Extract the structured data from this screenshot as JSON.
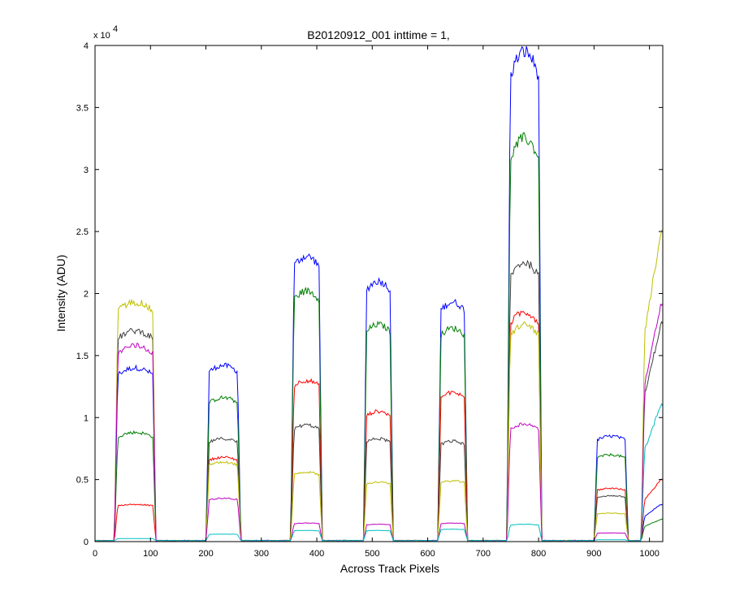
{
  "chart_data": {
    "type": "line",
    "title": "B20120912_001 inttime = 1,",
    "xlabel": "Across Track Pixels",
    "ylabel": "Intensity (ADU)",
    "y_exponent_prefix": "x 10",
    "y_exponent": "4",
    "xlim": [
      0,
      1024
    ],
    "ylim": [
      0,
      40000
    ],
    "xticks": [
      0,
      100,
      200,
      300,
      400,
      500,
      600,
      700,
      800,
      900,
      1000
    ],
    "yticks": [
      0,
      5000,
      10000,
      15000,
      20000,
      25000,
      30000,
      35000,
      40000
    ],
    "ytick_labels": [
      "0",
      "0.5",
      "1",
      "1.5",
      "2",
      "2.5",
      "3",
      "3.5",
      "4"
    ],
    "grid": false,
    "baseline": 80,
    "bands": [
      {
        "x0": 35,
        "x1": 110
      },
      {
        "x0": 200,
        "x1": 263
      },
      {
        "x0": 353,
        "x1": 410
      },
      {
        "x0": 484,
        "x1": 538
      },
      {
        "x0": 618,
        "x1": 672
      },
      {
        "x0": 743,
        "x1": 806
      },
      {
        "x0": 900,
        "x1": 962
      },
      {
        "x0": 985,
        "x1": 1024
      }
    ],
    "series": [
      {
        "color": "#0000ff",
        "peaks": [
          14000,
          14200,
          23000,
          21000,
          19300,
          39500,
          8500,
          3000
        ]
      },
      {
        "color": "#007f00",
        "peaks": [
          8800,
          11600,
          20200,
          17500,
          17200,
          32500,
          7000,
          1800
        ]
      },
      {
        "color": "#ff0000",
        "peaks": [
          3000,
          6800,
          13000,
          10500,
          12000,
          18500,
          4300,
          5000
        ]
      },
      {
        "color": "#404040",
        "peaks": [
          17000,
          8300,
          9400,
          8300,
          8100,
          22500,
          3700,
          17500
        ]
      },
      {
        "color": "#bfbf00",
        "peaks": [
          19300,
          6400,
          5600,
          4800,
          4900,
          17500,
          2300,
          25000
        ]
      },
      {
        "color": "#bf00bf",
        "peaks": [
          15800,
          3500,
          1500,
          1400,
          1500,
          9500,
          700,
          19000
        ]
      },
      {
        "color": "#00bfbf",
        "peaks": [
          250,
          600,
          900,
          900,
          1000,
          1400,
          150,
          11000
        ]
      }
    ]
  }
}
